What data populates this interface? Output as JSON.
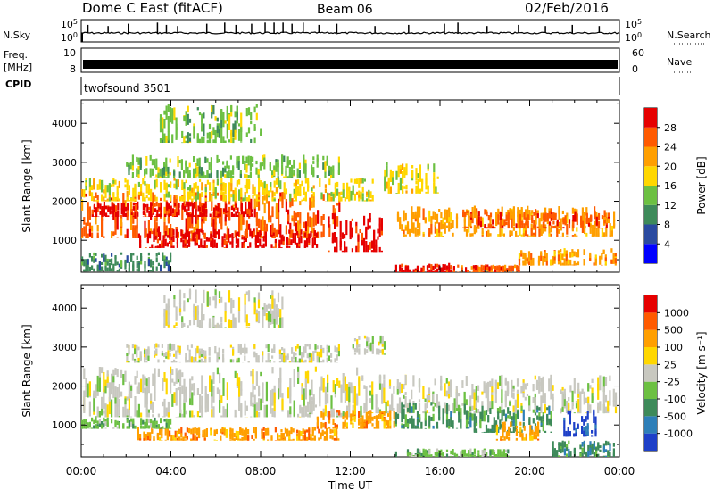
{
  "header": {
    "station": "Dome C East (fitACF)",
    "beam": "Beam 06",
    "date": "02/Feb/2016"
  },
  "chart_data": [
    {
      "type": "line",
      "panel": "noise",
      "left_labels": [
        "N.Sky"
      ],
      "right_labels": [
        "N.Search"
      ],
      "left_ticks": [
        "10^5",
        "10^0"
      ],
      "right_ticks": [
        "10^5",
        "10^0"
      ],
      "series": [
        {
          "x": [
            0.3,
            1.2,
            2.1,
            3.4,
            3.8,
            4.3,
            5.6,
            6.4,
            6.9,
            7.6,
            8.2,
            8.6,
            9.0,
            9.4,
            9.9,
            10.6,
            11.4,
            13.1,
            14.6,
            16.2,
            16.8,
            18.1,
            19.5,
            20.7,
            21.9,
            23.1
          ],
          "peaks": [
            0.7,
            0.6,
            0.8,
            0.9,
            0.7,
            0.6,
            0.8,
            0.9,
            0.7,
            0.8,
            0.9,
            0.9,
            0.9,
            0.8,
            0.9,
            0.7,
            0.8,
            0.6,
            0.7,
            0.8,
            0.9,
            0.6,
            0.7,
            0.6,
            0.7,
            0.6
          ]
        }
      ]
    },
    {
      "type": "line",
      "panel": "frequency",
      "left_labels": [
        "Freq.",
        "[MHz]"
      ],
      "right_labels": [
        "Nave"
      ],
      "left_ticks": [
        "10",
        "8"
      ],
      "right_ticks": [
        "60",
        "0"
      ],
      "note": "frequency constant near 9 MHz across the day"
    },
    {
      "type": "table",
      "panel": "cpid",
      "label": "CPID",
      "program": "twofsound 3501"
    },
    {
      "type": "heatmap",
      "panel": "power",
      "ylabel": "Slant Range [km]",
      "ylim": [
        180,
        4600
      ],
      "yticks": [
        1000,
        2000,
        3000,
        4000
      ],
      "colorbar_label": "Power [dB]",
      "colorbar_ticks": [
        4,
        8,
        12,
        16,
        20,
        24,
        28
      ],
      "colors": [
        "#0000ff",
        "#2a4aa0",
        "#3e8a5a",
        "#6cc042",
        "#ffd700",
        "#ff9f00",
        "#ff5a00",
        "#e60000"
      ],
      "regions": [
        {
          "t0": 0.0,
          "t1": 11.5,
          "r0": 1050,
          "r1": 2250,
          "level": 6
        },
        {
          "t0": 0.2,
          "t1": 7.8,
          "r0": 1600,
          "r1": 2000,
          "level": 7
        },
        {
          "t0": 2.5,
          "t1": 10.5,
          "r0": 800,
          "r1": 1300,
          "level": 7
        },
        {
          "t0": 0.0,
          "t1": 13.0,
          "r0": 2000,
          "r1": 2600,
          "level": 4
        },
        {
          "t0": 11.0,
          "t1": 13.5,
          "r0": 700,
          "r1": 1700,
          "level": 7
        },
        {
          "t0": 14.0,
          "t1": 23.8,
          "r0": 1100,
          "r1": 1900,
          "level": 5
        },
        {
          "t0": 17.0,
          "t1": 23.5,
          "r0": 1300,
          "r1": 1800,
          "level": 6
        },
        {
          "t0": 14.0,
          "t1": 16.5,
          "r0": 180,
          "r1": 420,
          "level": 7
        },
        {
          "t0": 16.5,
          "t1": 19.5,
          "r0": 180,
          "r1": 380,
          "level": 6
        },
        {
          "t0": 19.5,
          "t1": 23.8,
          "r0": 350,
          "r1": 800,
          "level": 5
        },
        {
          "t0": 2.0,
          "t1": 11.5,
          "r0": 2600,
          "r1": 3200,
          "level": 3
        },
        {
          "t0": 3.5,
          "t1": 8.0,
          "r0": 3500,
          "r1": 4500,
          "level": 3
        },
        {
          "t0": 0.0,
          "t1": 4.0,
          "r0": 200,
          "r1": 700,
          "level": 2
        },
        {
          "t0": 13.5,
          "t1": 16.0,
          "r0": 2200,
          "r1": 3000,
          "level": 4
        }
      ]
    },
    {
      "type": "heatmap",
      "panel": "velocity",
      "ylabel": "Slant Range [km]",
      "ylim": [
        180,
        4600
      ],
      "yticks": [
        1000,
        2000,
        3000,
        4000
      ],
      "xlabel": "Time UT",
      "xticks": [
        "00:00",
        "04:00",
        "08:00",
        "12:00",
        "16:00",
        "20:00",
        "00:00"
      ],
      "colorbar_label": "Velocity [m s⁻¹]",
      "colorbar_ticks": [
        "1000",
        "500",
        "100",
        "25",
        "-25",
        "-100",
        "-500",
        "-1000"
      ],
      "colors": [
        "#1e40c8",
        "#2e7fb8",
        "#3e8a5a",
        "#6cc042",
        "#c8c8c0",
        "#ffd700",
        "#ff9f00",
        "#ff5a00",
        "#e60000"
      ],
      "regions": [
        {
          "t0": 0.0,
          "t1": 12.5,
          "r0": 1200,
          "r1": 2500,
          "level": 4
        },
        {
          "t0": 12.5,
          "t1": 23.8,
          "r0": 1300,
          "r1": 2300,
          "level": 4
        },
        {
          "t0": 2.5,
          "t1": 11.5,
          "r0": 600,
          "r1": 950,
          "level": 6
        },
        {
          "t0": 0.0,
          "t1": 4.0,
          "r0": 900,
          "r1": 1200,
          "level": 3
        },
        {
          "t0": 10.5,
          "t1": 14.0,
          "r0": 900,
          "r1": 1400,
          "level": 6
        },
        {
          "t0": 14.0,
          "t1": 17.5,
          "r0": 900,
          "r1": 1600,
          "level": 2
        },
        {
          "t0": 17.5,
          "t1": 21.0,
          "r0": 800,
          "r1": 1500,
          "level": 2
        },
        {
          "t0": 18.5,
          "t1": 20.5,
          "r0": 600,
          "r1": 1100,
          "level": 6
        },
        {
          "t0": 21.5,
          "t1": 23.0,
          "r0": 700,
          "r1": 1400,
          "level": 0
        },
        {
          "t0": 21.0,
          "t1": 23.8,
          "r0": 180,
          "r1": 600,
          "level": 2
        },
        {
          "t0": 14.0,
          "t1": 19.0,
          "r0": 180,
          "r1": 400,
          "level": 3
        },
        {
          "t0": 2.0,
          "t1": 11.5,
          "r0": 2600,
          "r1": 3100,
          "level": 4
        },
        {
          "t0": 3.5,
          "t1": 9.0,
          "r0": 3500,
          "r1": 4500,
          "level": 4
        },
        {
          "t0": 12.0,
          "t1": 13.5,
          "r0": 2800,
          "r1": 3300,
          "level": 4
        }
      ]
    }
  ]
}
